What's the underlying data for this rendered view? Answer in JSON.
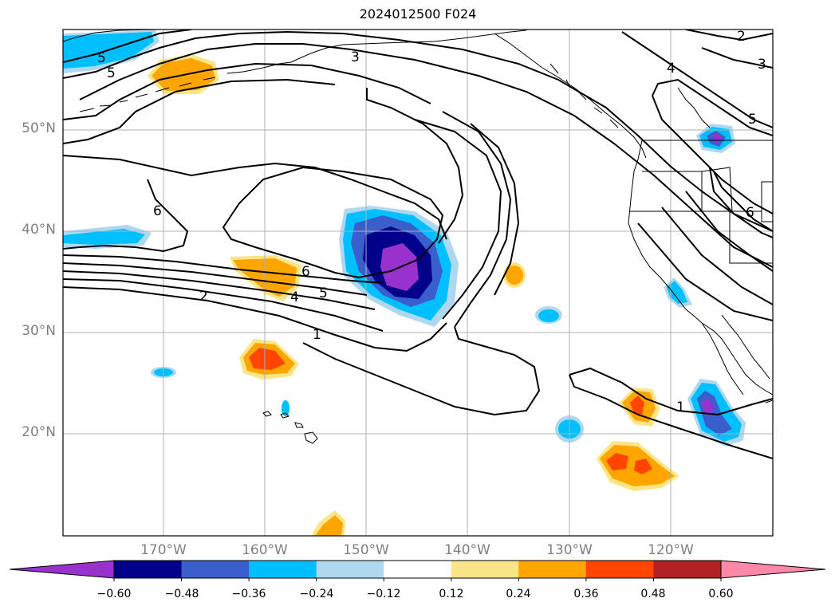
{
  "map": {
    "title": "2024012500 F024",
    "lat_labels": [
      "50°N",
      "40°N",
      "30°N",
      "20°N"
    ],
    "lon_labels": [
      "170°W",
      "160°W",
      "150°W",
      "140°W",
      "130°W",
      "120°W"
    ],
    "contour_labels": [
      "5",
      "5",
      "3",
      "2",
      "3",
      "4",
      "5",
      "6",
      "6",
      "6",
      "5",
      "4",
      "2",
      "1",
      "1"
    ]
  },
  "colorbar": {
    "tick_labels": [
      "−0.60",
      "−0.48",
      "−0.36",
      "−0.24",
      "−0.12",
      "0.12",
      "0.24",
      "0.36",
      "0.48",
      "0.60"
    ],
    "colors": [
      "#9932cc",
      "#00008b",
      "#3a5fcd",
      "#00bfff",
      "#add8f0",
      "#ffffff",
      "#fbe687",
      "#ffa500",
      "#ff4500",
      "#b22222",
      "#ff88a8"
    ]
  }
}
